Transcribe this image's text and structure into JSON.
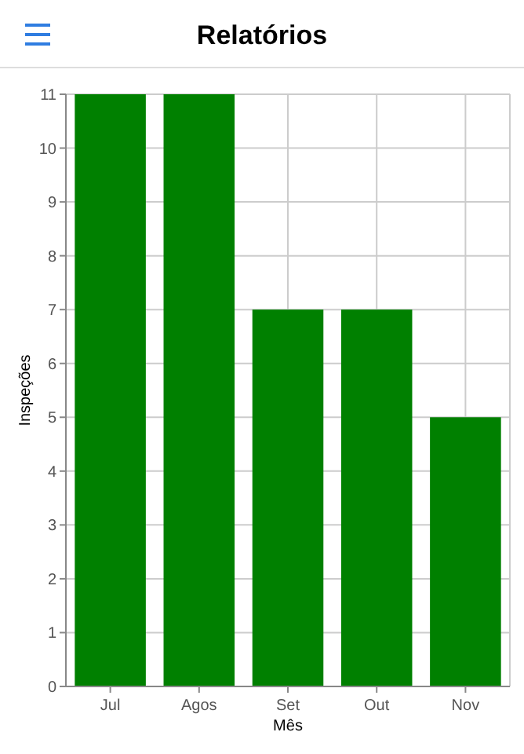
{
  "chart_data": {
    "type": "bar",
    "title": "Relatórios",
    "xlabel": "Mês",
    "ylabel": "Inspeções",
    "categories": [
      "Jul",
      "Agos",
      "Set",
      "Out",
      "Nov"
    ],
    "values": [
      11,
      11,
      7,
      7,
      5
    ],
    "color": "#008000",
    "ylim": [
      0,
      11
    ],
    "yticks": [
      0,
      1,
      2,
      3,
      4,
      5,
      6,
      7,
      8,
      9,
      10,
      11
    ],
    "grid": true
  }
}
